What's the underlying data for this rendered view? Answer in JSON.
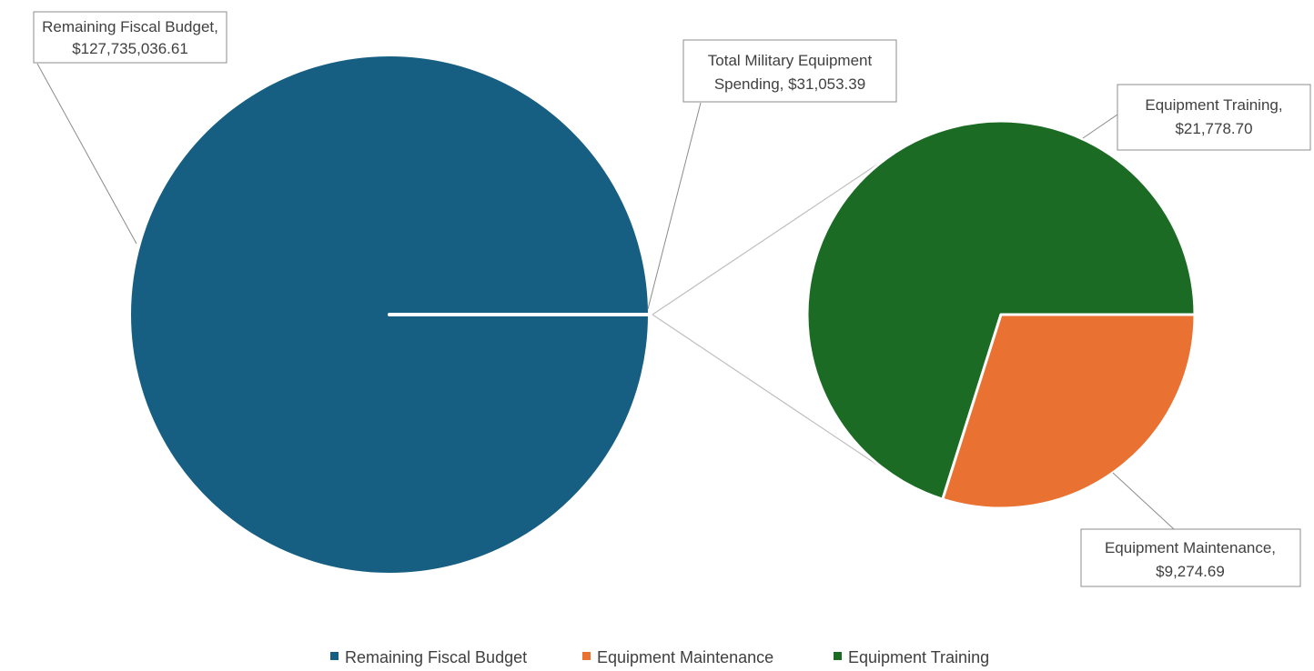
{
  "chart_data": {
    "type": "pie",
    "subtype": "pie-of-pie",
    "primary": {
      "slices": [
        {
          "name": "Remaining Fiscal Budget",
          "value": 127735036.61,
          "color": "#175F82",
          "label_lines": [
            "Remaining Fiscal Budget,",
            "$127,735,036.61"
          ]
        },
        {
          "name": "Total Military Equipment Spending",
          "value": 31053.39,
          "color": "#175F82",
          "label_lines": [
            "Total Military Equipment",
            "Spending,  $31,053.39"
          ]
        }
      ]
    },
    "secondary": {
      "slices": [
        {
          "name": "Equipment Training",
          "value": 21778.7,
          "color": "#1B6B24",
          "label_lines": [
            "Equipment Training,",
            "$21,778.70"
          ]
        },
        {
          "name": "Equipment Maintenance",
          "value": 9274.69,
          "color": "#E97132",
          "label_lines": [
            "Equipment Maintenance,",
            "$9,274.69"
          ]
        }
      ]
    },
    "legend": {
      "position": "bottom",
      "entries": [
        {
          "name": "Remaining Fiscal Budget",
          "color": "#175F82"
        },
        {
          "name": "Equipment Maintenance",
          "color": "#E97132"
        },
        {
          "name": "Equipment Training",
          "color": "#1B6B24"
        }
      ]
    },
    "connector_color": "#BFBFBF",
    "leader_color": "#8C8C8C",
    "label_border_color": "#8C8C8C",
    "text_color": "#404040"
  }
}
